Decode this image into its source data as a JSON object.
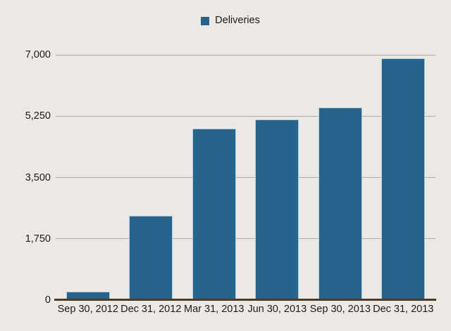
{
  "legend": {
    "label": "Deliveries"
  },
  "chart_data": {
    "type": "bar",
    "title": "",
    "xlabel": "",
    "ylabel": "",
    "categories": [
      "Sep 30, 2012",
      "Dec 31, 2012",
      "Mar 31, 2013",
      "Jun 30, 2013",
      "Sep 30, 2013",
      "Dec 31, 2013"
    ],
    "series": [
      {
        "name": "Deliveries",
        "values": [
          250,
          2400,
          4900,
          5150,
          5500,
          6900
        ]
      }
    ],
    "ylim": [
      0,
      7000
    ],
    "yticks": [
      0,
      1750,
      3500,
      5250,
      7000
    ],
    "ytick_labels": [
      "0",
      "1,750",
      "3,500",
      "5,250",
      "7,000"
    ],
    "grid": true,
    "legend_position": "top-center",
    "colors": {
      "background": "#ECE9E4",
      "bar_fill": "#26648C",
      "bar_edge": "#AFCDE0",
      "gridline": "#ADACA8",
      "axis_line": "#4E3B2B",
      "text": "#1C1C1C"
    }
  }
}
